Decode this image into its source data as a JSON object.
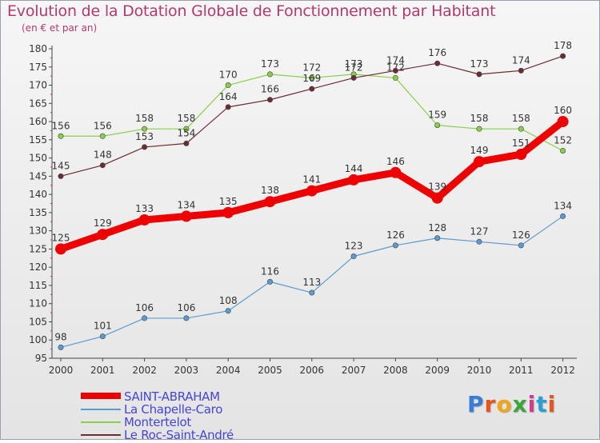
{
  "title": "Evolution de la Dotation Globale de Fonctionnement par Habitant",
  "subtitle": "(en € et par an)",
  "logo": "Proxiti",
  "chart_data": {
    "type": "line",
    "x": [
      "2000",
      "2001",
      "2002",
      "2003",
      "2004",
      "2005",
      "2006",
      "2007",
      "2008",
      "2009",
      "2010",
      "2011",
      "2012"
    ],
    "ylim": [
      95,
      180
    ],
    "yticks": [
      95,
      100,
      105,
      110,
      115,
      120,
      125,
      130,
      135,
      140,
      145,
      150,
      155,
      160,
      165,
      170,
      175,
      180
    ],
    "grid": false,
    "legend_position": "bottom-left",
    "series": [
      {
        "name": "SAINT-ABRAHAM",
        "color": "#ee0000",
        "values": [
          125,
          129,
          133,
          134,
          135,
          138,
          141,
          144,
          146,
          139,
          149,
          151,
          160
        ]
      },
      {
        "name": "La Chapelle-Caro",
        "color": "#5c9bd1",
        "values": [
          98,
          101,
          106,
          106,
          108,
          116,
          113,
          123,
          126,
          128,
          127,
          126,
          134
        ]
      },
      {
        "name": "Montertelot",
        "color": "#88d04b",
        "values": [
          156,
          156,
          158,
          158,
          170,
          173,
          172,
          173,
          172,
          159,
          158,
          158,
          152
        ]
      },
      {
        "name": "Le Roc-Saint-André",
        "color": "#6b2c32",
        "values": [
          145,
          148,
          153,
          154,
          164,
          166,
          169,
          172,
          174,
          176,
          173,
          174,
          178
        ]
      }
    ]
  }
}
